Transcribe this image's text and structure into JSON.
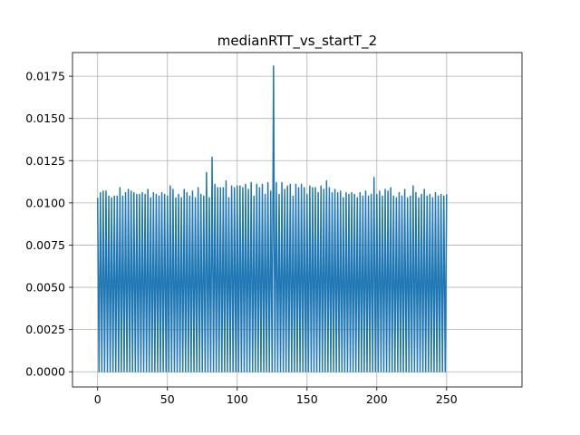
{
  "chart_data": {
    "type": "line",
    "title": "medianRTT_vs_startT_2",
    "xlabel": "",
    "ylabel": "",
    "xlim": [
      -18,
      304
    ],
    "ylim": [
      -0.0009,
      0.0189
    ],
    "x_ticks": [
      0,
      50,
      100,
      150,
      200,
      250
    ],
    "x_tick_labels": [
      "0",
      "50",
      "100",
      "150",
      "200",
      "250"
    ],
    "y_ticks": [
      0.0,
      0.0025,
      0.005,
      0.0075,
      0.01,
      0.0125,
      0.015,
      0.0175
    ],
    "y_tick_labels": [
      "0.0000",
      "0.0025",
      "0.0050",
      "0.0075",
      "0.0100",
      "0.0125",
      "0.0150",
      "0.0175"
    ],
    "grid": true,
    "legend": "none",
    "series": [
      {
        "color": "#1f77b4",
        "x_start": 0,
        "x_step": 1,
        "y": [
          0.0103,
          0.0,
          0.0106,
          0.0,
          0.0107,
          0.0,
          0.0107,
          0.0,
          0.0104,
          0.0,
          0.0103,
          0.0,
          0.0104,
          0.0,
          0.0104,
          0.0,
          0.0109,
          0.0,
          0.0104,
          0.0,
          0.0106,
          0.0,
          0.0108,
          0.0,
          0.0107,
          0.0,
          0.0106,
          0.0,
          0.0105,
          0.0,
          0.0105,
          0.0,
          0.0106,
          0.0,
          0.0105,
          0.0,
          0.0108,
          0.0,
          0.0103,
          0.0,
          0.0106,
          0.0,
          0.0105,
          0.0,
          0.0104,
          0.0,
          0.0106,
          0.0,
          0.0105,
          0.0,
          0.0104,
          0.0,
          0.011,
          0.0,
          0.0108,
          0.0,
          0.0103,
          0.0,
          0.0105,
          0.0,
          0.0103,
          0.0,
          0.0108,
          0.0,
          0.0106,
          0.0,
          0.0104,
          0.0,
          0.0107,
          0.0,
          0.0103,
          0.0,
          0.0109,
          0.0,
          0.0105,
          0.0,
          0.0104,
          0.0,
          0.0118,
          0.0,
          0.0103,
          0.0,
          0.0127,
          0.0,
          0.0111,
          0.0,
          0.0109,
          0.0,
          0.0109,
          0.0,
          0.0109,
          0.0,
          0.0113,
          0.0,
          0.0103,
          0.0,
          0.011,
          0.0,
          0.0109,
          0.0,
          0.011,
          0.0,
          0.011,
          0.0,
          0.0109,
          0.0,
          0.0111,
          0.0,
          0.0108,
          0.0,
          0.0112,
          0.0,
          0.0104,
          0.0,
          0.0111,
          0.0,
          0.0109,
          0.0,
          0.0111,
          0.0,
          0.0105,
          0.0,
          0.0112,
          0.0,
          0.0107,
          0.0,
          0.0181,
          0.0,
          0.0112,
          0.0,
          0.0105,
          0.0,
          0.0112,
          0.0,
          0.0108,
          0.0,
          0.011,
          0.0,
          0.0111,
          0.0,
          0.0104,
          0.0,
          0.0111,
          0.0,
          0.0109,
          0.0,
          0.0111,
          0.0,
          0.0109,
          0.0,
          0.0105,
          0.0,
          0.011,
          0.0,
          0.0109,
          0.0,
          0.0109,
          0.0,
          0.0106,
          0.0,
          0.011,
          0.0,
          0.0108,
          0.0,
          0.0113,
          0.0,
          0.0109,
          0.0,
          0.0106,
          0.0,
          0.0108,
          0.0,
          0.0106,
          0.0,
          0.0107,
          0.0,
          0.0103,
          0.0,
          0.0106,
          0.0,
          0.0105,
          0.0,
          0.0106,
          0.0,
          0.0105,
          0.0,
          0.0103,
          0.0,
          0.0106,
          0.0,
          0.0104,
          0.0,
          0.0107,
          0.0,
          0.0104,
          0.0,
          0.0105,
          0.0,
          0.0115,
          0.0,
          0.0105,
          0.0,
          0.0107,
          0.0,
          0.0104,
          0.0,
          0.0108,
          0.0,
          0.0107,
          0.0,
          0.0109,
          0.0,
          0.0104,
          0.0,
          0.0103,
          0.0,
          0.0106,
          0.0,
          0.0104,
          0.0,
          0.0108,
          0.0,
          0.0103,
          0.0,
          0.0104,
          0.0,
          0.011,
          0.0,
          0.0106,
          0.0,
          0.0103,
          0.0,
          0.0105,
          0.0,
          0.0108,
          0.0,
          0.0104,
          0.0,
          0.0105,
          0.0,
          0.0103,
          0.0,
          0.0106,
          0.0,
          0.0104,
          0.0,
          0.0105,
          0.0,
          0.0104,
          0.0,
          0.0105
        ]
      }
    ]
  }
}
